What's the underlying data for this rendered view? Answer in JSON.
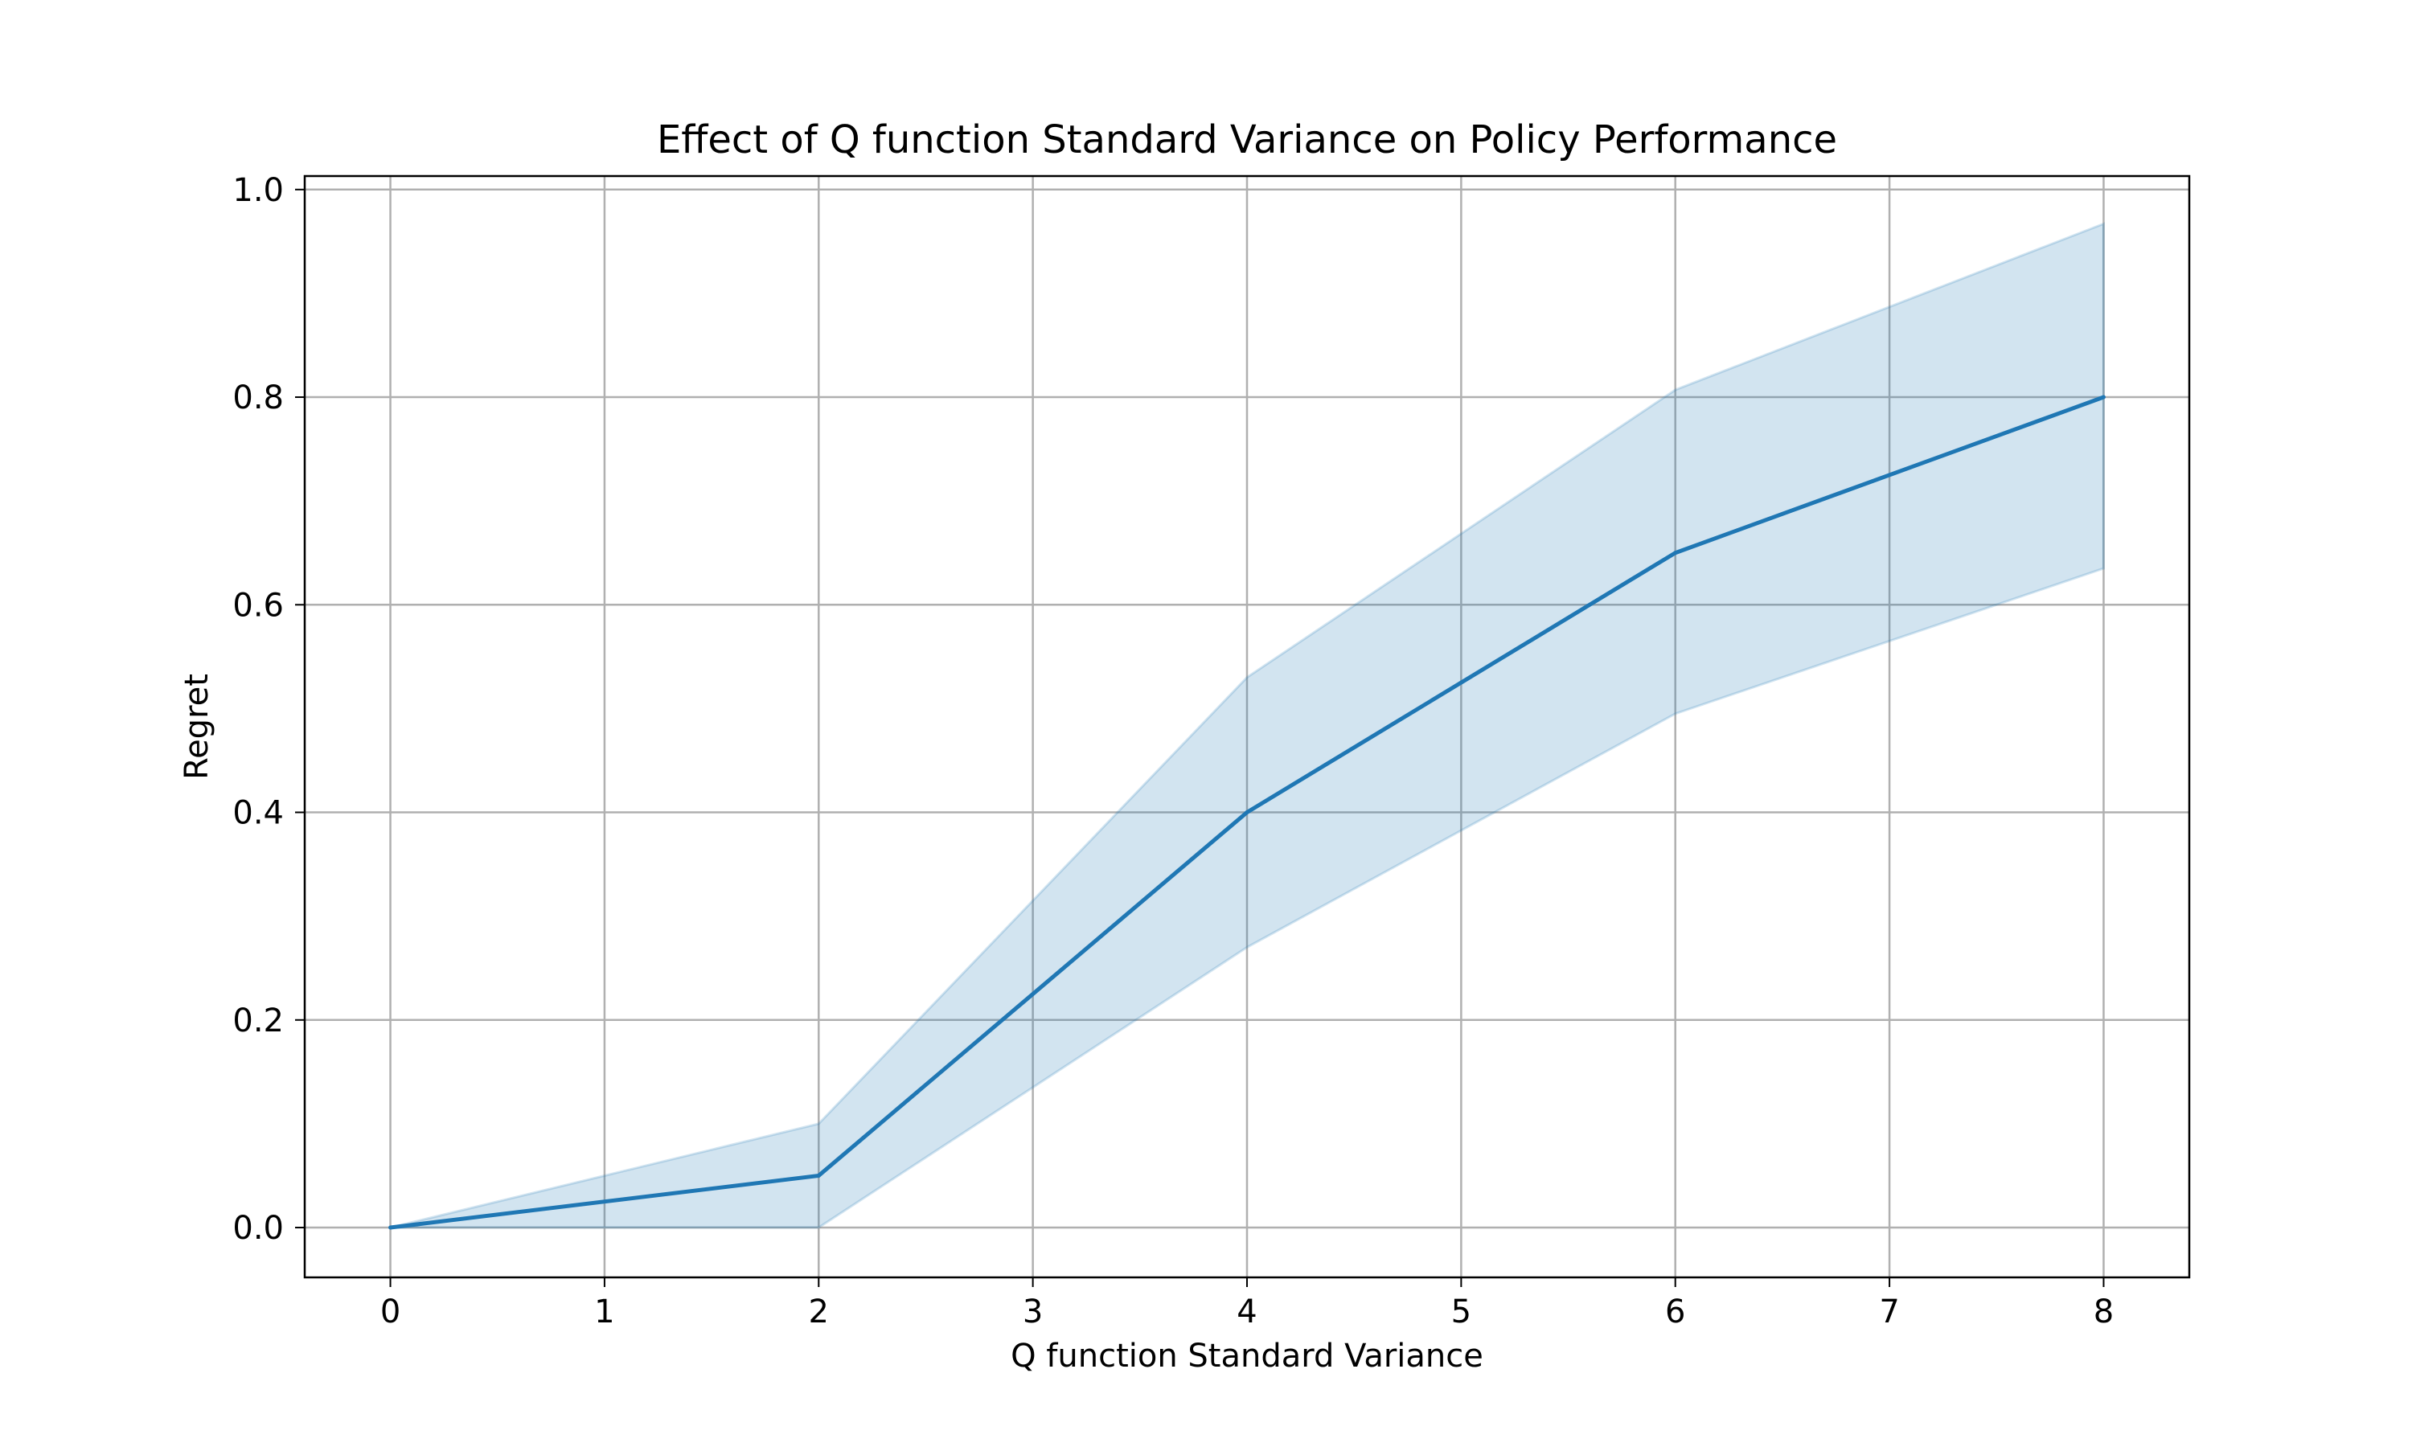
{
  "chart_data": {
    "type": "line",
    "title": "Effect of Q function Standard Variance on Policy Performance",
    "xlabel": "Q function Standard Variance",
    "ylabel": "Regret",
    "xlim": [
      -0.4,
      8.4
    ],
    "ylim": [
      -0.048,
      1.013
    ],
    "xticks": [
      0,
      1,
      2,
      3,
      4,
      5,
      6,
      7,
      8
    ],
    "xtick_labels": [
      "0",
      "1",
      "2",
      "3",
      "4",
      "5",
      "6",
      "7",
      "8"
    ],
    "yticks": [
      0.0,
      0.2,
      0.4,
      0.6,
      0.8,
      1.0
    ],
    "ytick_labels": [
      "0.0",
      "0.2",
      "0.4",
      "0.6",
      "0.8",
      "1.0"
    ],
    "grid": true,
    "series": [
      {
        "x": [
          0,
          2,
          4,
          6,
          8
        ],
        "y": [
          0.0,
          0.05,
          0.4,
          0.65,
          0.8
        ],
        "lower": [
          0.0,
          0.0,
          0.27,
          0.495,
          0.635
        ],
        "upper": [
          0.0,
          0.1,
          0.53,
          0.807,
          0.967
        ],
        "color": "#1f77b4",
        "band_color": "#1f77b4"
      }
    ]
  }
}
